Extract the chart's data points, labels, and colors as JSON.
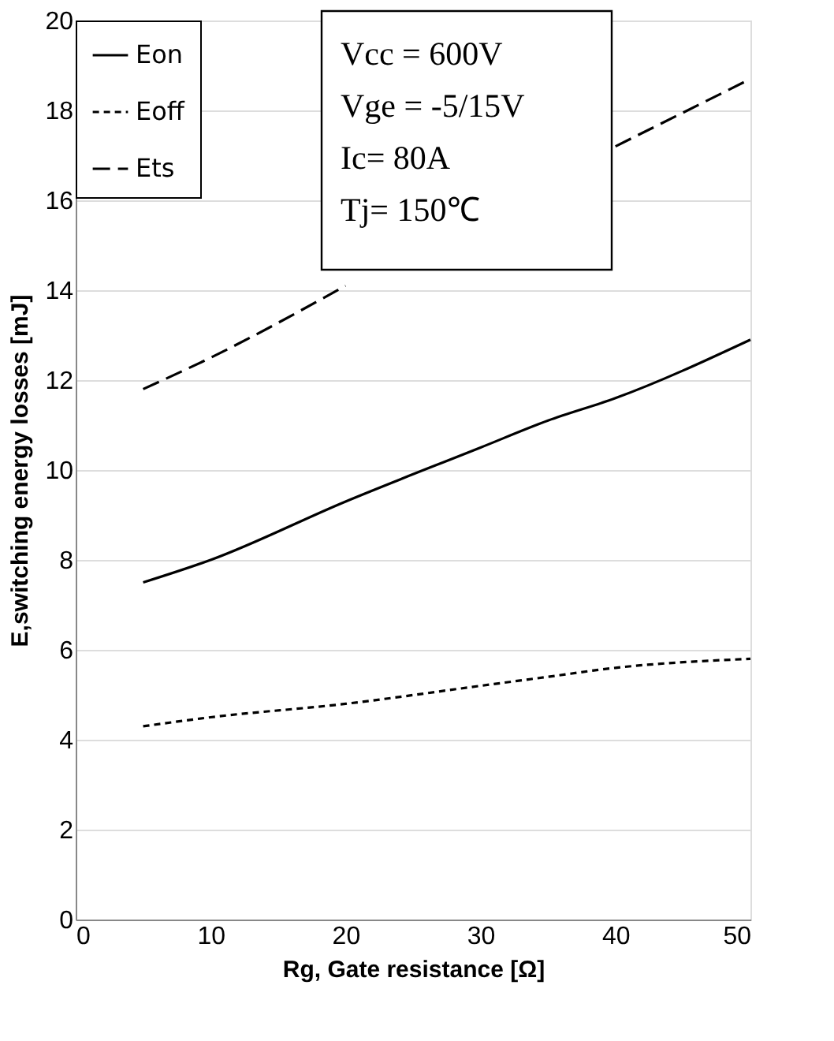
{
  "chart_data": {
    "type": "line",
    "xlabel": "Rg, Gate resistance [Ω]",
    "ylabel": "E,switching energy losses [mJ]",
    "xlim": [
      0,
      50
    ],
    "xticks": [
      0,
      10,
      20,
      30,
      40,
      50
    ],
    "ylim": [
      0,
      20
    ],
    "yticks": [
      0,
      2,
      4,
      6,
      8,
      10,
      12,
      14,
      16,
      18,
      20
    ],
    "grid": "y",
    "legend": "top left",
    "x": [
      5,
      10,
      20,
      30,
      35,
      40,
      50
    ],
    "series": [
      {
        "name": "Eon",
        "color": "#000000",
        "line_style": "solid",
        "values": [
          7.5,
          8.0,
          9.3,
          10.5,
          11.1,
          11.6,
          12.9
        ]
      },
      {
        "name": "Eoff",
        "color": "#000000",
        "line_style": "dotted",
        "values": [
          4.3,
          4.5,
          4.8,
          5.2,
          5.4,
          5.6,
          5.8
        ]
      },
      {
        "name": "Ets",
        "color": "#000000",
        "line_style": "dashed",
        "values": [
          11.8,
          12.5,
          14.1,
          null,
          null,
          17.2,
          18.7
        ]
      }
    ],
    "annotations": [
      "Vcc = 600V",
      "Vge = -5/15V",
      "Ic= 80A",
      "Tj= 150℃"
    ]
  }
}
